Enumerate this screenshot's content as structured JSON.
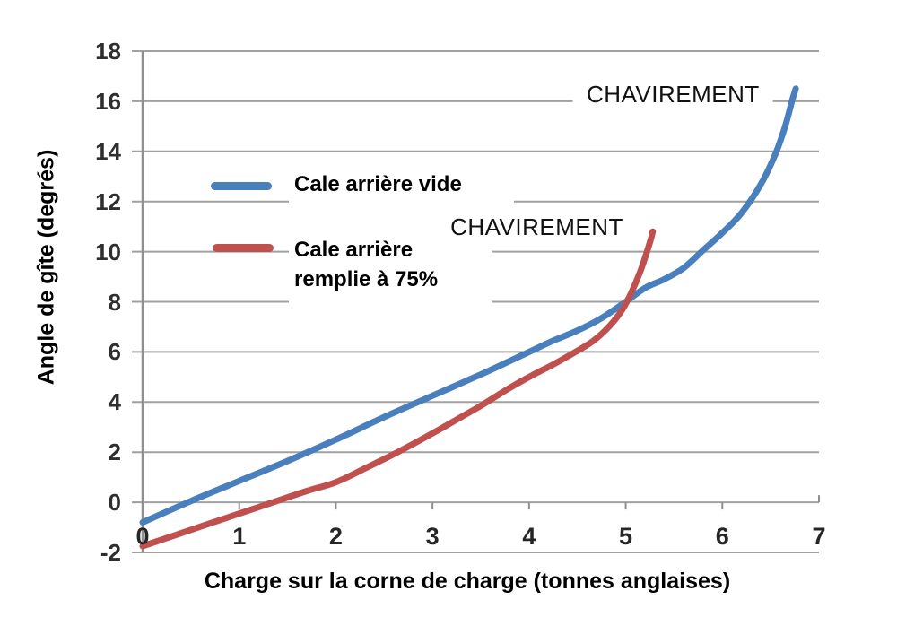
{
  "chart_data": {
    "type": "line",
    "title": "",
    "xlabel": "Charge sur la corne de charge (tonnes anglaises)",
    "ylabel": "Angle de gîte (degrés)",
    "xlim": [
      0,
      7
    ],
    "ylim": [
      -2,
      18
    ],
    "xticks": [
      "0",
      "1",
      "2",
      "3",
      "4",
      "5",
      "6",
      "7"
    ],
    "xtick_values": [
      0,
      1,
      2,
      3,
      4,
      5,
      6,
      7
    ],
    "yticks": [
      "18",
      "16",
      "14",
      "12",
      "10",
      "8",
      "6",
      "4",
      "2",
      "0",
      "-2"
    ],
    "ytick_values": [
      18,
      16,
      14,
      12,
      10,
      8,
      6,
      4,
      2,
      0,
      -2
    ],
    "grid": "horizontal",
    "legend_position": "inside-upper-left",
    "colors": {
      "series_blue": "#4a7fbd",
      "series_red": "#c0504d",
      "gridline": "#a1a1a1",
      "axis": "#8f8f8f"
    },
    "series": [
      {
        "name": "Cale arrière vide",
        "color": "#4a7fbd",
        "points": [
          [
            0,
            -0.8
          ],
          [
            0.5,
            0.05
          ],
          [
            1,
            0.85
          ],
          [
            1.5,
            1.65
          ],
          [
            2,
            2.5
          ],
          [
            2.5,
            3.4
          ],
          [
            3,
            4.25
          ],
          [
            3.5,
            5.1
          ],
          [
            4,
            6.0
          ],
          [
            4.25,
            6.45
          ],
          [
            4.5,
            6.85
          ],
          [
            4.75,
            7.35
          ],
          [
            5,
            8.0
          ],
          [
            5.2,
            8.55
          ],
          [
            5.4,
            8.9
          ],
          [
            5.6,
            9.35
          ],
          [
            5.8,
            10.05
          ],
          [
            6,
            10.75
          ],
          [
            6.2,
            11.55
          ],
          [
            6.4,
            12.7
          ],
          [
            6.55,
            13.9
          ],
          [
            6.65,
            15.0
          ],
          [
            6.72,
            16.0
          ],
          [
            6.76,
            16.5
          ]
        ]
      },
      {
        "name": "Cale arrière remplie à 75%",
        "color": "#c0504d",
        "points": [
          [
            0,
            -1.75
          ],
          [
            0.5,
            -1.1
          ],
          [
            1,
            -0.45
          ],
          [
            1.35,
            0
          ],
          [
            1.7,
            0.45
          ],
          [
            2,
            0.8
          ],
          [
            2.3,
            1.35
          ],
          [
            2.64,
            2.0
          ],
          [
            3,
            2.75
          ],
          [
            3.25,
            3.3
          ],
          [
            3.5,
            3.85
          ],
          [
            3.75,
            4.45
          ],
          [
            4,
            5.0
          ],
          [
            4.25,
            5.5
          ],
          [
            4.48,
            6.0
          ],
          [
            4.65,
            6.4
          ],
          [
            4.8,
            6.9
          ],
          [
            4.95,
            7.6
          ],
          [
            5.05,
            8.3
          ],
          [
            5.15,
            9.2
          ],
          [
            5.22,
            10.0
          ],
          [
            5.26,
            10.5
          ],
          [
            5.28,
            10.8
          ]
        ]
      }
    ],
    "annotations": [
      {
        "text": "CHAVIREMENT",
        "x": 5.49,
        "y": 16.3
      },
      {
        "text": "CHAVIREMENT",
        "x": 4.08,
        "y": 11.0
      }
    ]
  }
}
